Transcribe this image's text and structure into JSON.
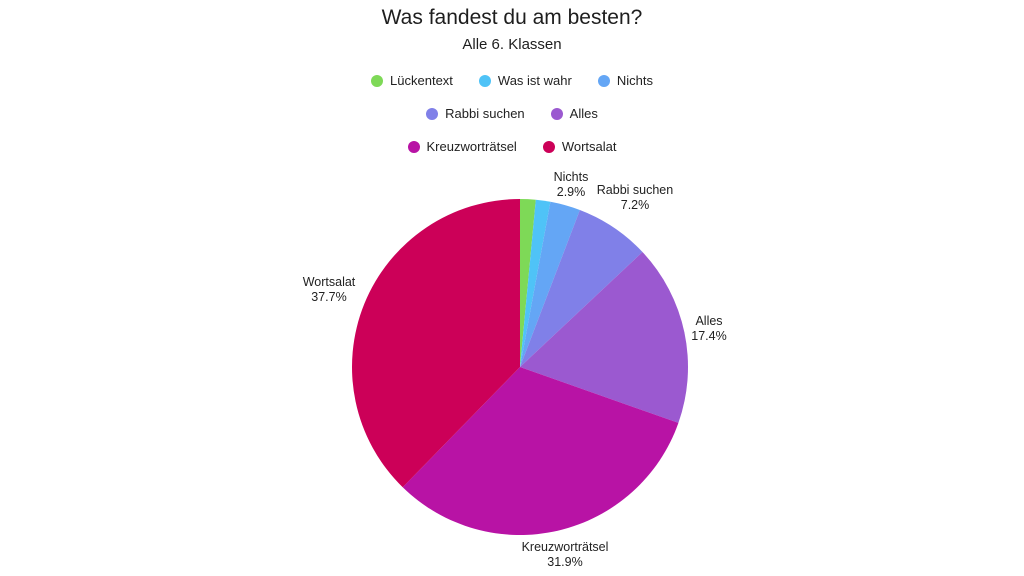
{
  "chart_data": {
    "type": "pie",
    "title": "Was fandest du am besten?",
    "subtitle": "Alle 6. Klassen",
    "slices": [
      {
        "label": "Lückentext",
        "value": 1.5,
        "color": "#7ed957",
        "show_label": false
      },
      {
        "label": "Was ist wahr",
        "value": 1.4,
        "color": "#4fc3f7",
        "show_label": false
      },
      {
        "label": "Nichts",
        "value": 2.9,
        "display": "2.9%",
        "color": "#64a6f5",
        "show_label": true
      },
      {
        "label": "Rabbi suchen",
        "value": 7.2,
        "display": "7.2%",
        "color": "#8080e8",
        "show_label": true
      },
      {
        "label": "Alles",
        "value": 17.4,
        "display": "17.4%",
        "color": "#9b59d0",
        "show_label": true
      },
      {
        "label": "Kreuzworträtsel",
        "value": 31.9,
        "display": "31.9%",
        "color": "#b813a5",
        "show_label": true
      },
      {
        "label": "Wortsalat",
        "value": 37.7,
        "display": "37.7%",
        "color": "#cc0058",
        "show_label": true
      }
    ],
    "legend_rows": [
      [
        "Lückentext",
        "Was ist wahr",
        "Nichts"
      ],
      [
        "Rabbi suchen",
        "Alles"
      ],
      [
        "Kreuzworträtsel",
        "Wortsalat"
      ]
    ],
    "start_angle": "12 o'clock",
    "direction": "clockwise"
  }
}
